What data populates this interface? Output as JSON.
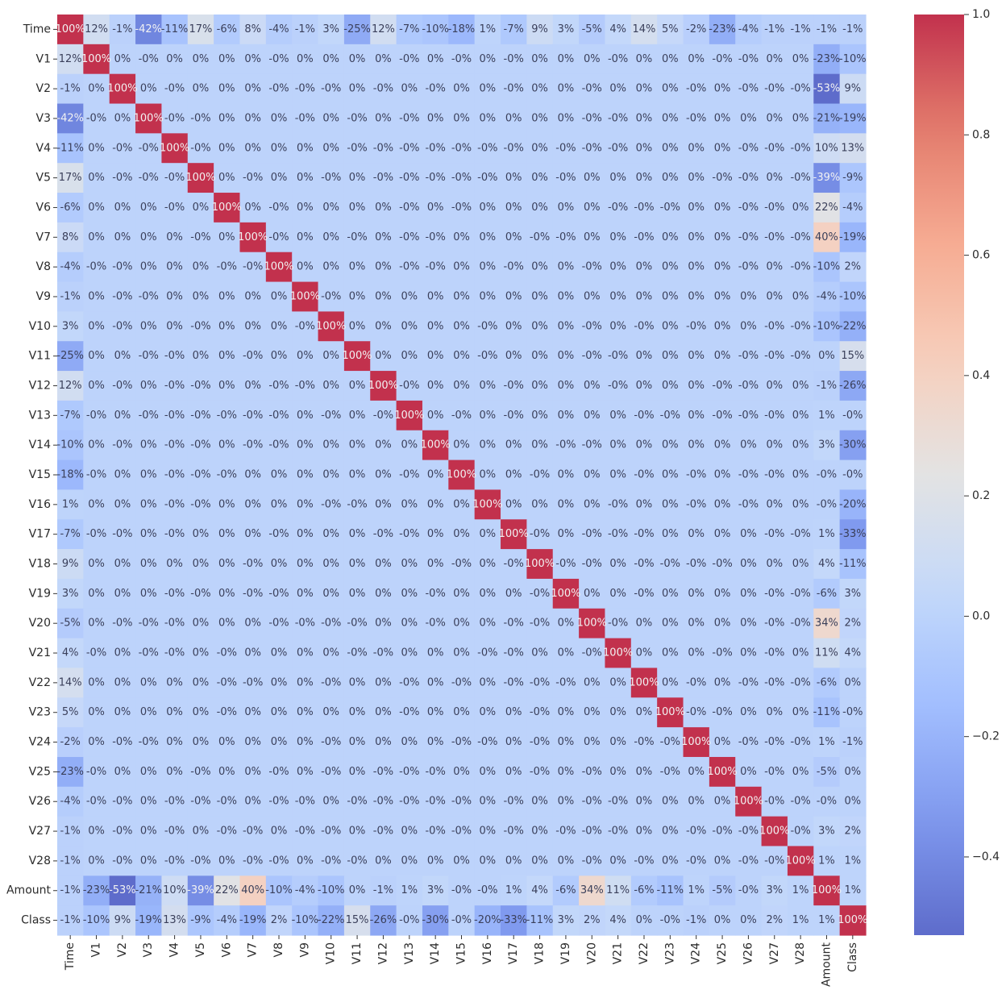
{
  "chart_data": {
    "type": "heatmap",
    "title": "",
    "xlabel": "",
    "ylabel": "",
    "labels": [
      "Time",
      "V1",
      "V2",
      "V3",
      "V4",
      "V5",
      "V6",
      "V7",
      "V8",
      "V9",
      "V10",
      "V11",
      "V12",
      "V13",
      "V14",
      "V15",
      "V16",
      "V17",
      "V18",
      "V19",
      "V20",
      "V21",
      "V22",
      "V23",
      "V24",
      "V25",
      "V26",
      "V27",
      "V28",
      "Amount",
      "Class"
    ],
    "matrix": [
      [
        "100%",
        "12%",
        "-1%",
        "-42%",
        "-11%",
        "17%",
        "-6%",
        "8%",
        "-4%",
        "-1%",
        "3%",
        "-25%",
        "12%",
        "-7%",
        "-10%",
        "-18%",
        "1%",
        "-7%",
        "9%",
        "3%",
        "-5%",
        "4%",
        "14%",
        "5%",
        "-2%",
        "-23%",
        "-4%",
        "-1%",
        "-1%",
        "-1%",
        "-1%"
      ],
      [
        "12%",
        "100%",
        "0%",
        "-0%",
        "0%",
        "0%",
        "0%",
        "0%",
        "-0%",
        "0%",
        "0%",
        "0%",
        "0%",
        "-0%",
        "0%",
        "-0%",
        "0%",
        "-0%",
        "0%",
        "0%",
        "0%",
        "-0%",
        "0%",
        "0%",
        "0%",
        "-0%",
        "-0%",
        "0%",
        "0%",
        "-23%",
        "-10%"
      ],
      [
        "-1%",
        "0%",
        "100%",
        "0%",
        "-0%",
        "0%",
        "0%",
        "0%",
        "-0%",
        "-0%",
        "-0%",
        "0%",
        "-0%",
        "0%",
        "-0%",
        "0%",
        "0%",
        "-0%",
        "0%",
        "0%",
        "-0%",
        "0%",
        "0%",
        "0%",
        "-0%",
        "0%",
        "-0%",
        "-0%",
        "-0%",
        "-53%",
        "9%"
      ],
      [
        "-42%",
        "-0%",
        "0%",
        "100%",
        "-0%",
        "-0%",
        "0%",
        "0%",
        "0%",
        "-0%",
        "0%",
        "-0%",
        "0%",
        "-0%",
        "0%",
        "0%",
        "0%",
        "0%",
        "0%",
        "0%",
        "-0%",
        "-0%",
        "0%",
        "0%",
        "-0%",
        "0%",
        "0%",
        "0%",
        "0%",
        "-21%",
        "-19%"
      ],
      [
        "-11%",
        "0%",
        "-0%",
        "-0%",
        "100%",
        "-0%",
        "0%",
        "0%",
        "0%",
        "0%",
        "0%",
        "-0%",
        "-0%",
        "-0%",
        "-0%",
        "-0%",
        "-0%",
        "-0%",
        "0%",
        "-0%",
        "-0%",
        "-0%",
        "0%",
        "0%",
        "0%",
        "0%",
        "-0%",
        "-0%",
        "-0%",
        "10%",
        "13%"
      ],
      [
        "17%",
        "0%",
        "-0%",
        "-0%",
        "-0%",
        "100%",
        "0%",
        "-0%",
        "0%",
        "0%",
        "-0%",
        "0%",
        "-0%",
        "-0%",
        "-0%",
        "-0%",
        "-0%",
        "0%",
        "0%",
        "-0%",
        "0%",
        "0%",
        "0%",
        "0%",
        "0%",
        "-0%",
        "-0%",
        "0%",
        "-0%",
        "-39%",
        "-9%"
      ],
      [
        "-6%",
        "0%",
        "0%",
        "0%",
        "-0%",
        "0%",
        "100%",
        "0%",
        "-0%",
        "0%",
        "0%",
        "0%",
        "0%",
        "-0%",
        "0%",
        "-0%",
        "0%",
        "0%",
        "0%",
        "0%",
        "0%",
        "-0%",
        "-0%",
        "-0%",
        "0%",
        "0%",
        "-0%",
        "-0%",
        "0%",
        "22%",
        "-4%"
      ],
      [
        "8%",
        "0%",
        "0%",
        "0%",
        "0%",
        "-0%",
        "0%",
        "100%",
        "-0%",
        "0%",
        "0%",
        "-0%",
        "0%",
        "-0%",
        "-0%",
        "0%",
        "0%",
        "0%",
        "-0%",
        "-0%",
        "0%",
        "0%",
        "-0%",
        "0%",
        "0%",
        "0%",
        "-0%",
        "-0%",
        "-0%",
        "40%",
        "-19%"
      ],
      [
        "-4%",
        "-0%",
        "-0%",
        "0%",
        "0%",
        "0%",
        "-0%",
        "-0%",
        "100%",
        "0%",
        "0%",
        "0%",
        "0%",
        "-0%",
        "-0%",
        "0%",
        "0%",
        "-0%",
        "0%",
        "0%",
        "-0%",
        "0%",
        "0%",
        "0%",
        "0%",
        "0%",
        "-0%",
        "0%",
        "-0%",
        "-10%",
        "2%"
      ],
      [
        "-1%",
        "0%",
        "-0%",
        "-0%",
        "0%",
        "0%",
        "0%",
        "0%",
        "0%",
        "100%",
        "-0%",
        "0%",
        "0%",
        "0%",
        "0%",
        "0%",
        "0%",
        "0%",
        "0%",
        "0%",
        "0%",
        "0%",
        "0%",
        "0%",
        "0%",
        "0%",
        "0%",
        "0%",
        "0%",
        "-4%",
        "-10%"
      ],
      [
        "3%",
        "0%",
        "-0%",
        "0%",
        "0%",
        "-0%",
        "0%",
        "0%",
        "0%",
        "-0%",
        "100%",
        "0%",
        "0%",
        "0%",
        "0%",
        "0%",
        "-0%",
        "0%",
        "0%",
        "0%",
        "-0%",
        "0%",
        "-0%",
        "0%",
        "-0%",
        "0%",
        "0%",
        "-0%",
        "-0%",
        "-10%",
        "-22%"
      ],
      [
        "-25%",
        "0%",
        "0%",
        "-0%",
        "-0%",
        "0%",
        "0%",
        "-0%",
        "0%",
        "0%",
        "0%",
        "100%",
        "0%",
        "0%",
        "0%",
        "0%",
        "-0%",
        "0%",
        "0%",
        "0%",
        "-0%",
        "-0%",
        "0%",
        "0%",
        "0%",
        "0%",
        "-0%",
        "-0%",
        "-0%",
        "0%",
        "15%"
      ],
      [
        "12%",
        "0%",
        "-0%",
        "0%",
        "-0%",
        "-0%",
        "0%",
        "0%",
        "-0%",
        "-0%",
        "0%",
        "0%",
        "100%",
        "-0%",
        "0%",
        "0%",
        "0%",
        "-0%",
        "0%",
        "0%",
        "0%",
        "-0%",
        "0%",
        "0%",
        "0%",
        "-0%",
        "-0%",
        "0%",
        "0%",
        "-1%",
        "-26%"
      ],
      [
        "-7%",
        "-0%",
        "0%",
        "-0%",
        "-0%",
        "-0%",
        "-0%",
        "-0%",
        "-0%",
        "0%",
        "-0%",
        "0%",
        "-0%",
        "100%",
        "0%",
        "-0%",
        "0%",
        "-0%",
        "0%",
        "0%",
        "0%",
        "0%",
        "-0%",
        "-0%",
        "0%",
        "-0%",
        "-0%",
        "-0%",
        "0%",
        "1%",
        "-0%"
      ],
      [
        "-10%",
        "0%",
        "-0%",
        "0%",
        "-0%",
        "-0%",
        "0%",
        "-0%",
        "-0%",
        "0%",
        "0%",
        "0%",
        "0%",
        "0%",
        "100%",
        "0%",
        "0%",
        "0%",
        "0%",
        "-0%",
        "-0%",
        "0%",
        "0%",
        "0%",
        "0%",
        "0%",
        "0%",
        "0%",
        "0%",
        "3%",
        "-30%"
      ],
      [
        "-18%",
        "-0%",
        "0%",
        "0%",
        "-0%",
        "-0%",
        "-0%",
        "0%",
        "0%",
        "0%",
        "0%",
        "0%",
        "0%",
        "-0%",
        "0%",
        "100%",
        "0%",
        "0%",
        "-0%",
        "0%",
        "0%",
        "0%",
        "-0%",
        "0%",
        "-0%",
        "0%",
        "-0%",
        "-0%",
        "0%",
        "-0%",
        "-0%"
      ],
      [
        "1%",
        "0%",
        "0%",
        "0%",
        "-0%",
        "-0%",
        "0%",
        "0%",
        "0%",
        "0%",
        "-0%",
        "-0%",
        "0%",
        "0%",
        "0%",
        "0%",
        "100%",
        "0%",
        "0%",
        "0%",
        "0%",
        "-0%",
        "0%",
        "0%",
        "-0%",
        "0%",
        "-0%",
        "0%",
        "0%",
        "-0%",
        "-20%"
      ],
      [
        "-7%",
        "-0%",
        "-0%",
        "0%",
        "-0%",
        "0%",
        "0%",
        "0%",
        "-0%",
        "0%",
        "0%",
        "0%",
        "-0%",
        "-0%",
        "0%",
        "0%",
        "0%",
        "100%",
        "-0%",
        "0%",
        "-0%",
        "-0%",
        "-0%",
        "0%",
        "0%",
        "0%",
        "0%",
        "-0%",
        "-0%",
        "1%",
        "-33%"
      ],
      [
        "9%",
        "0%",
        "0%",
        "0%",
        "0%",
        "0%",
        "0%",
        "-0%",
        "0%",
        "0%",
        "0%",
        "0%",
        "0%",
        "0%",
        "0%",
        "-0%",
        "0%",
        "-0%",
        "100%",
        "-0%",
        "-0%",
        "0%",
        "-0%",
        "-0%",
        "-0%",
        "-0%",
        "0%",
        "0%",
        "0%",
        "4%",
        "-11%"
      ],
      [
        "3%",
        "0%",
        "0%",
        "0%",
        "-0%",
        "-0%",
        "0%",
        "-0%",
        "-0%",
        "0%",
        "0%",
        "0%",
        "0%",
        "0%",
        "-0%",
        "0%",
        "0%",
        "0%",
        "-0%",
        "100%",
        "0%",
        "0%",
        "-0%",
        "0%",
        "0%",
        "0%",
        "0%",
        "-0%",
        "-0%",
        "-6%",
        "3%"
      ],
      [
        "-5%",
        "0%",
        "-0%",
        "-0%",
        "-0%",
        "0%",
        "0%",
        "0%",
        "-0%",
        "-0%",
        "-0%",
        "-0%",
        "0%",
        "0%",
        "-0%",
        "0%",
        "0%",
        "-0%",
        "-0%",
        "0%",
        "100%",
        "-0%",
        "0%",
        "0%",
        "0%",
        "0%",
        "0%",
        "-0%",
        "-0%",
        "34%",
        "2%"
      ],
      [
        "4%",
        "-0%",
        "0%",
        "-0%",
        "-0%",
        "0%",
        "-0%",
        "0%",
        "0%",
        "0%",
        "0%",
        "-0%",
        "-0%",
        "0%",
        "0%",
        "0%",
        "-0%",
        "-0%",
        "0%",
        "0%",
        "-0%",
        "100%",
        "0%",
        "0%",
        "0%",
        "-0%",
        "0%",
        "-0%",
        "0%",
        "11%",
        "4%"
      ],
      [
        "14%",
        "0%",
        "0%",
        "0%",
        "0%",
        "0%",
        "-0%",
        "-0%",
        "0%",
        "0%",
        "-0%",
        "0%",
        "0%",
        "-0%",
        "0%",
        "-0%",
        "0%",
        "-0%",
        "-0%",
        "-0%",
        "0%",
        "0%",
        "100%",
        "0%",
        "-0%",
        "0%",
        "-0%",
        "-0%",
        "-0%",
        "-6%",
        "0%"
      ],
      [
        "5%",
        "0%",
        "0%",
        "0%",
        "0%",
        "0%",
        "-0%",
        "0%",
        "0%",
        "0%",
        "0%",
        "0%",
        "0%",
        "-0%",
        "0%",
        "0%",
        "0%",
        "0%",
        "-0%",
        "0%",
        "0%",
        "0%",
        "0%",
        "100%",
        "-0%",
        "-0%",
        "0%",
        "0%",
        "0%",
        "-11%",
        "-0%"
      ],
      [
        "-2%",
        "0%",
        "-0%",
        "-0%",
        "0%",
        "0%",
        "0%",
        "0%",
        "0%",
        "0%",
        "-0%",
        "0%",
        "0%",
        "0%",
        "0%",
        "-0%",
        "-0%",
        "0%",
        "-0%",
        "0%",
        "0%",
        "0%",
        "-0%",
        "-0%",
        "100%",
        "0%",
        "-0%",
        "-0%",
        "-0%",
        "1%",
        "-1%"
      ],
      [
        "-23%",
        "-0%",
        "0%",
        "0%",
        "0%",
        "-0%",
        "0%",
        "0%",
        "-0%",
        "0%",
        "-0%",
        "0%",
        "-0%",
        "-0%",
        "-0%",
        "0%",
        "0%",
        "0%",
        "-0%",
        "0%",
        "-0%",
        "0%",
        "0%",
        "-0%",
        "0%",
        "100%",
        "0%",
        "-0%",
        "0%",
        "-5%",
        "0%"
      ],
      [
        "-4%",
        "-0%",
        "-0%",
        "0%",
        "-0%",
        "-0%",
        "-0%",
        "0%",
        "-0%",
        "-0%",
        "0%",
        "-0%",
        "-0%",
        "-0%",
        "-0%",
        "-0%",
        "0%",
        "-0%",
        "0%",
        "0%",
        "-0%",
        "-0%",
        "0%",
        "0%",
        "0%",
        "0%",
        "100%",
        "-0%",
        "-0%",
        "-0%",
        "0%"
      ],
      [
        "-1%",
        "0%",
        "-0%",
        "0%",
        "-0%",
        "0%",
        "-0%",
        "-0%",
        "0%",
        "-0%",
        "-0%",
        "0%",
        "-0%",
        "0%",
        "-0%",
        "-0%",
        "0%",
        "-0%",
        "0%",
        "-0%",
        "-0%",
        "-0%",
        "0%",
        "0%",
        "-0%",
        "-0%",
        "-0%",
        "100%",
        "-0%",
        "3%",
        "2%"
      ],
      [
        "-1%",
        "0%",
        "-0%",
        "0%",
        "-0%",
        "-0%",
        "0%",
        "-0%",
        "-0%",
        "0%",
        "-0%",
        "-0%",
        "0%",
        "0%",
        "0%",
        "0%",
        "0%",
        "0%",
        "0%",
        "0%",
        "-0%",
        "0%",
        "-0%",
        "0%",
        "-0%",
        "0%",
        "-0%",
        "-0%",
        "100%",
        "1%",
        "1%"
      ],
      [
        "-1%",
        "-23%",
        "-53%",
        "-21%",
        "10%",
        "-39%",
        "22%",
        "40%",
        "-10%",
        "-4%",
        "-10%",
        "0%",
        "-1%",
        "1%",
        "3%",
        "-0%",
        "-0%",
        "1%",
        "4%",
        "-6%",
        "34%",
        "11%",
        "-6%",
        "-11%",
        "1%",
        "-5%",
        "-0%",
        "3%",
        "1%",
        "100%",
        "1%"
      ],
      [
        "-1%",
        "-10%",
        "9%",
        "-19%",
        "13%",
        "-9%",
        "-4%",
        "-19%",
        "2%",
        "-10%",
        "-22%",
        "15%",
        "-26%",
        "-0%",
        "-30%",
        "-0%",
        "-20%",
        "-33%",
        "-11%",
        "3%",
        "2%",
        "4%",
        "0%",
        "-0%",
        "-1%",
        "0%",
        "0%",
        "2%",
        "1%",
        "1%",
        "100%"
      ]
    ],
    "colorbar": {
      "colormap": "coolwarm",
      "vmin": -0.53,
      "vmax": 1.0,
      "ticks": [
        {
          "value": 1.0,
          "label": "1.0"
        },
        {
          "value": 0.8,
          "label": "0.8"
        },
        {
          "value": 0.6,
          "label": "0.6"
        },
        {
          "value": 0.4,
          "label": "0.4"
        },
        {
          "value": 0.2,
          "label": "0.2"
        },
        {
          "value": 0.0,
          "label": "0.0"
        },
        {
          "value": -0.2,
          "label": "−0.2"
        },
        {
          "value": -0.4,
          "label": "−0.4"
        }
      ]
    },
    "grid": false,
    "legend": "right-colorbar"
  }
}
